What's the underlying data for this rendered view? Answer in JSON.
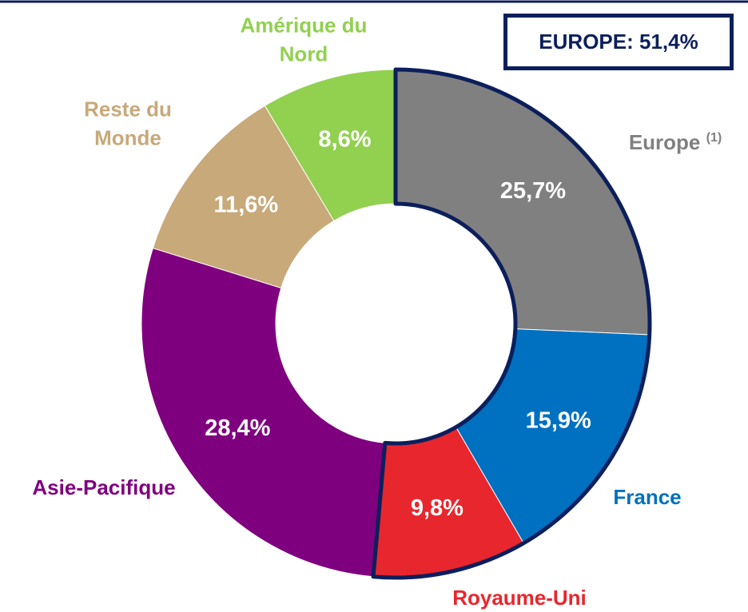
{
  "chart_data": {
    "type": "donut",
    "categories": [
      "Europe",
      "France",
      "Royaume-Uni",
      "Asie-Pacifique",
      "Reste du Monde",
      "Amérique du Nord"
    ],
    "category_superscripts": [
      "(1)",
      null,
      null,
      null,
      null,
      null
    ],
    "values": [
      25.7,
      15.9,
      9.8,
      28.4,
      11.6,
      8.6
    ],
    "value_labels": [
      "25,7%",
      "15,9%",
      "9,8%",
      "28,4%",
      "11,6%",
      "8,6%"
    ],
    "colors": [
      "#808080",
      "#0070c0",
      "#e8262d",
      "#7f007f",
      "#c8a97a",
      "#92d050"
    ],
    "group": {
      "label": "EUROPE: 51,4%",
      "members": [
        0,
        1,
        2
      ],
      "color": "#0c1f5c"
    }
  }
}
